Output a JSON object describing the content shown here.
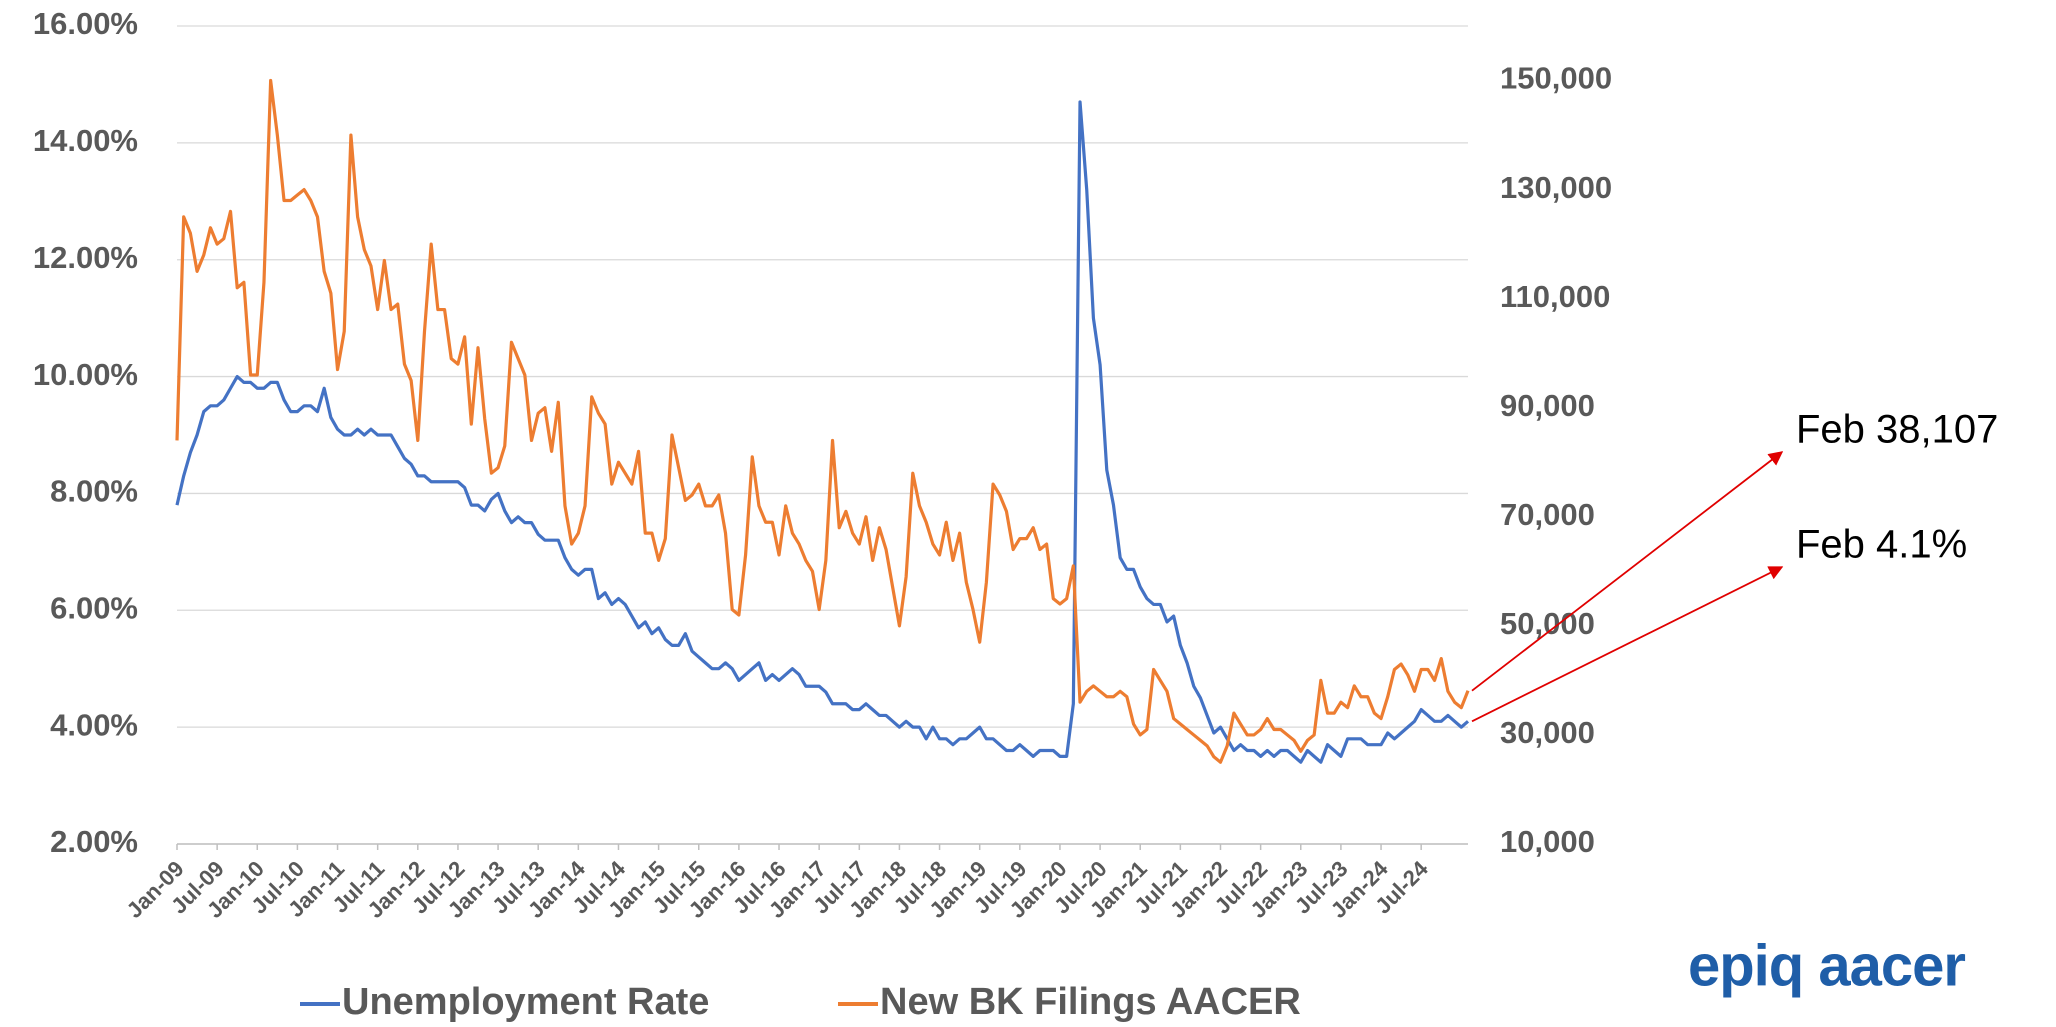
{
  "chart_data": {
    "type": "line",
    "categories": [
      "Jan-09",
      null,
      null,
      null,
      null,
      null,
      "Jul-09",
      null,
      null,
      null,
      null,
      null,
      "Jan-10",
      null,
      null,
      null,
      null,
      null,
      "Jul-10",
      null,
      null,
      null,
      null,
      null,
      "Jan-11",
      null,
      null,
      null,
      null,
      null,
      "Jul-11",
      null,
      null,
      null,
      null,
      null,
      "Jan-12",
      null,
      null,
      null,
      null,
      null,
      "Jul-12",
      null,
      null,
      null,
      null,
      null,
      "Jan-13",
      null,
      null,
      null,
      null,
      null,
      "Jul-13",
      null,
      null,
      null,
      null,
      null,
      "Jan-14",
      null,
      null,
      null,
      null,
      null,
      "Jul-14",
      null,
      null,
      null,
      null,
      null,
      "Jan-15",
      null,
      null,
      null,
      null,
      null,
      "Jul-15",
      null,
      null,
      null,
      null,
      null,
      "Jan-16",
      null,
      null,
      null,
      null,
      null,
      "Jul-16",
      null,
      null,
      null,
      null,
      null,
      "Jan-17",
      null,
      null,
      null,
      null,
      null,
      "Jul-17",
      null,
      null,
      null,
      null,
      null,
      "Jan-18",
      null,
      null,
      null,
      null,
      null,
      "Jul-18",
      null,
      null,
      null,
      null,
      null,
      "Jan-19",
      null,
      null,
      null,
      null,
      null,
      "Jul-19",
      null,
      null,
      null,
      null,
      null,
      "Jan-20",
      null,
      null,
      null,
      null,
      null,
      "Jul-20",
      null,
      null,
      null,
      null,
      null,
      "Jan-21",
      null,
      null,
      null,
      null,
      null,
      "Jul-21",
      null,
      null,
      null,
      null,
      null,
      "Jan-22",
      null,
      null,
      null,
      null,
      null,
      "Jul-22",
      null,
      null,
      null,
      null,
      null,
      "Jan-23",
      null,
      null,
      null,
      null,
      null,
      "Jul-23",
      null,
      null,
      null,
      null,
      null,
      "Jan-24",
      null,
      null,
      null,
      null,
      null,
      "Jul-24",
      null,
      null,
      null,
      null,
      null,
      null,
      null
    ],
    "series": [
      {
        "name": "Unemployment Rate",
        "color": "#4472c4",
        "axis": "y",
        "values": [
          7.8,
          8.3,
          8.7,
          9.0,
          9.4,
          9.5,
          9.5,
          9.6,
          9.8,
          10.0,
          9.9,
          9.9,
          9.8,
          9.8,
          9.9,
          9.9,
          9.6,
          9.4,
          9.4,
          9.5,
          9.5,
          9.4,
          9.8,
          9.3,
          9.1,
          9.0,
          9.0,
          9.1,
          9.0,
          9.1,
          9.0,
          9.0,
          9.0,
          8.8,
          8.6,
          8.5,
          8.3,
          8.3,
          8.2,
          8.2,
          8.2,
          8.2,
          8.2,
          8.1,
          7.8,
          7.8,
          7.7,
          7.9,
          8.0,
          7.7,
          7.5,
          7.6,
          7.5,
          7.5,
          7.3,
          7.2,
          7.2,
          7.2,
          6.9,
          6.7,
          6.6,
          6.7,
          6.7,
          6.2,
          6.3,
          6.1,
          6.2,
          6.1,
          5.9,
          5.7,
          5.8,
          5.6,
          5.7,
          5.5,
          5.4,
          5.4,
          5.6,
          5.3,
          5.2,
          5.1,
          5.0,
          5.0,
          5.1,
          5.0,
          4.8,
          4.9,
          5.0,
          5.1,
          4.8,
          4.9,
          4.8,
          4.9,
          5.0,
          4.9,
          4.7,
          4.7,
          4.7,
          4.6,
          4.4,
          4.4,
          4.4,
          4.3,
          4.3,
          4.4,
          4.3,
          4.2,
          4.2,
          4.1,
          4.0,
          4.1,
          4.0,
          4.0,
          3.8,
          4.0,
          3.8,
          3.8,
          3.7,
          3.8,
          3.8,
          3.9,
          4.0,
          3.8,
          3.8,
          3.7,
          3.6,
          3.6,
          3.7,
          3.6,
          3.5,
          3.6,
          3.6,
          3.6,
          3.5,
          3.5,
          4.4,
          14.7,
          13.2,
          11.0,
          10.2,
          8.4,
          7.8,
          6.9,
          6.7,
          6.7,
          6.4,
          6.2,
          6.1,
          6.1,
          5.8,
          5.9,
          5.4,
          5.1,
          4.7,
          4.5,
          4.2,
          3.9,
          4.0,
          3.8,
          3.6,
          3.7,
          3.6,
          3.6,
          3.5,
          3.6,
          3.5,
          3.6,
          3.6,
          3.5,
          3.4,
          3.6,
          3.5,
          3.4,
          3.7,
          3.6,
          3.5,
          3.8,
          3.8,
          3.8,
          3.7,
          3.7,
          3.7,
          3.9,
          3.8,
          3.9,
          4.0,
          4.1,
          4.3,
          4.2,
          4.1,
          4.1,
          4.2,
          4.1,
          4.0,
          4.1
        ]
      },
      {
        "name": "New BK Filings AACER",
        "color": "#ed7d31",
        "axis": "y2",
        "values": [
          84000,
          125000,
          122000,
          115000,
          118000,
          123000,
          120000,
          121000,
          126000,
          112000,
          113000,
          96000,
          96000,
          113000,
          150000,
          140000,
          128000,
          128000,
          129000,
          130000,
          128000,
          125000,
          115000,
          111000,
          97000,
          104000,
          140000,
          125000,
          119000,
          116000,
          108000,
          117000,
          108000,
          109000,
          98000,
          95000,
          84000,
          104000,
          120000,
          108000,
          108000,
          99000,
          98000,
          103000,
          87000,
          101000,
          88000,
          78000,
          79000,
          83000,
          102000,
          99000,
          96000,
          84000,
          89000,
          90000,
          82000,
          91000,
          72000,
          65000,
          67000,
          72000,
          92000,
          89000,
          87000,
          76000,
          80000,
          78000,
          76000,
          82000,
          67000,
          67000,
          62000,
          66000,
          85000,
          79000,
          73000,
          74000,
          76000,
          72000,
          72000,
          74000,
          67000,
          53000,
          52000,
          63000,
          81000,
          72000,
          69000,
          69000,
          63000,
          72000,
          67000,
          65000,
          62000,
          60000,
          53000,
          62000,
          84000,
          68000,
          71000,
          67000,
          65000,
          70000,
          62000,
          68000,
          64000,
          57000,
          50000,
          59000,
          78000,
          72000,
          69000,
          65000,
          63000,
          69000,
          62000,
          67000,
          58000,
          53000,
          47000,
          58000,
          76000,
          74000,
          71000,
          64000,
          66000,
          66000,
          68000,
          64000,
          65000,
          55000,
          54000,
          55000,
          61000,
          36000,
          38000,
          39000,
          38000,
          37000,
          37000,
          38000,
          37000,
          32000,
          30000,
          31000,
          42000,
          40000,
          38000,
          33000,
          32000,
          31000,
          30000,
          29000,
          28000,
          26000,
          25000,
          28000,
          34000,
          32000,
          30000,
          30000,
          31000,
          33000,
          31000,
          31000,
          30000,
          29000,
          27000,
          29000,
          30000,
          40000,
          34000,
          34000,
          36000,
          35000,
          39000,
          37000,
          37000,
          34000,
          33000,
          37000,
          42000,
          43000,
          41000,
          38000,
          42000,
          42000,
          40000,
          44000,
          38000,
          36000,
          35000,
          38107
        ]
      }
    ],
    "ylim": [
      2,
      16
    ],
    "yticks": [
      {
        "value": 2,
        "label": "2.00%"
      },
      {
        "value": 4,
        "label": "4.00%"
      },
      {
        "value": 6,
        "label": "6.00%"
      },
      {
        "value": 8,
        "label": "8.00%"
      },
      {
        "value": 10,
        "label": "10.00%"
      },
      {
        "value": 12,
        "label": "12.00%"
      },
      {
        "value": 14,
        "label": "14.00%"
      },
      {
        "value": 16,
        "label": "16.00%"
      }
    ],
    "y2lim": [
      10000,
      160000
    ],
    "y2ticks": [
      {
        "value": 10000,
        "label": "10,000"
      },
      {
        "value": 30000,
        "label": "30,000"
      },
      {
        "value": 50000,
        "label": "50,000"
      },
      {
        "value": 70000,
        "label": "70,000"
      },
      {
        "value": 90000,
        "label": "90,000"
      },
      {
        "value": 110000,
        "label": "110,000"
      },
      {
        "value": 130000,
        "label": "130,000"
      },
      {
        "value": 150000,
        "label": "150,000"
      }
    ],
    "grid": true,
    "annotations": [
      {
        "text": "Feb 38,107",
        "series": 1
      },
      {
        "text": "Feb 4.1%",
        "series": 0
      }
    ],
    "logo": "epiq aacer"
  }
}
